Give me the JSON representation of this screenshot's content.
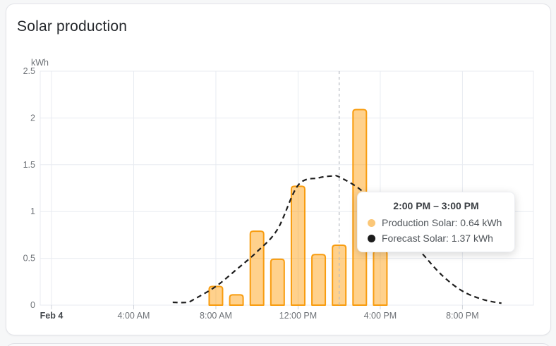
{
  "card": {
    "title": "Solar production"
  },
  "chart_data": {
    "type": "bar",
    "title": "Solar production",
    "unit": "kWh",
    "ylabel": "kWh",
    "ylim": [
      0,
      2.5
    ],
    "y_ticks": [
      0,
      0.5,
      1,
      1.5,
      2,
      2.5
    ],
    "x_ticks": [
      {
        "hour": 0,
        "label": "Feb 4",
        "bold": true
      },
      {
        "hour": 4,
        "label": "4:00 AM"
      },
      {
        "hour": 8,
        "label": "8:00 AM"
      },
      {
        "hour": 12,
        "label": "12:00 PM"
      },
      {
        "hour": 16,
        "label": "4:00 PM"
      },
      {
        "hour": 20,
        "label": "8:00 PM"
      }
    ],
    "grid": true,
    "legend": "none",
    "hover_hour": 14,
    "series": [
      {
        "name": "Production Solar",
        "type": "bar",
        "stroke_color": "#f89c0f",
        "fill_color": "rgba(255,152,0,0.45)",
        "hours": [
          8,
          9,
          10,
          11,
          12,
          13,
          14,
          15,
          16
        ],
        "values": [
          0.2,
          0.11,
          0.79,
          0.49,
          1.27,
          0.54,
          0.64,
          2.09,
          0.58
        ]
      },
      {
        "name": "Forecast Solar",
        "type": "line",
        "dashed": true,
        "color": "#1e1e1e",
        "points": [
          [
            5.9,
            0.03
          ],
          [
            6.6,
            0.03
          ],
          [
            7,
            0.07
          ],
          [
            8,
            0.2
          ],
          [
            9,
            0.38
          ],
          [
            10,
            0.57
          ],
          [
            11,
            0.81
          ],
          [
            12,
            1.28
          ],
          [
            13,
            1.36
          ],
          [
            13.7,
            1.38
          ],
          [
            14,
            1.37
          ],
          [
            15,
            1.24
          ],
          [
            16,
            1.02
          ],
          [
            17,
            0.79
          ],
          [
            18,
            0.56
          ],
          [
            19,
            0.32
          ],
          [
            20,
            0.15
          ],
          [
            21,
            0.06
          ],
          [
            21.9,
            0.02
          ]
        ]
      }
    ]
  },
  "tooltip": {
    "title": "2:00 PM – 3:00 PM",
    "rows": [
      {
        "series": "Production Solar",
        "text": "Production Solar: 0.64 kWh",
        "marker_color": "#fbc778"
      },
      {
        "series": "Forecast Solar",
        "text": "Forecast Solar: 1.37 kWh",
        "marker_color": "#1c1c1c"
      }
    ]
  },
  "colors": {
    "grid": "#e8ebf1",
    "tick": "#ced2d9",
    "axis_label": "#6e7277",
    "axis_label_bold": "#43474c",
    "crosshair": "#b6bac2"
  }
}
